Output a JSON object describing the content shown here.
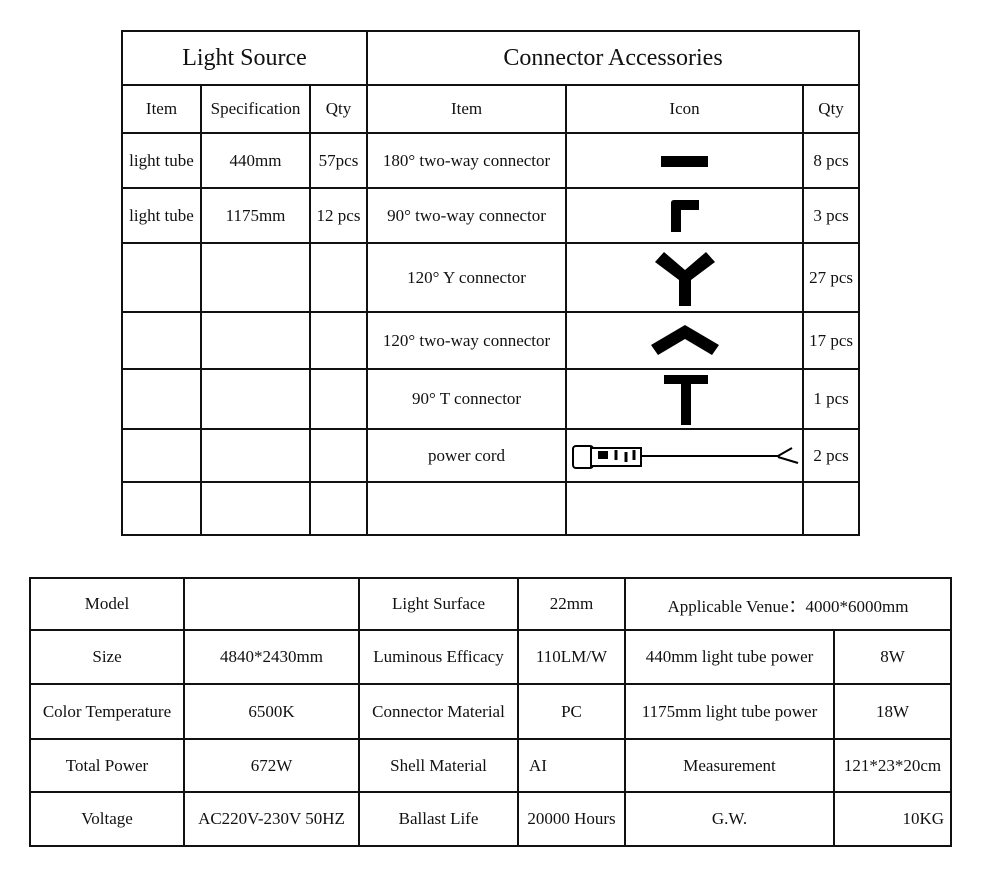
{
  "light_source": {
    "title": "Light Source",
    "headers": [
      "Item",
      "Specification",
      "Qty"
    ],
    "rows": [
      [
        "light tube",
        "440mm",
        "57pcs"
      ],
      [
        "light tube",
        "1175mm",
        "12 pcs"
      ],
      [
        "",
        "",
        ""
      ],
      [
        "",
        "",
        ""
      ],
      [
        "",
        "",
        ""
      ],
      [
        "",
        "",
        ""
      ],
      [
        "",
        "",
        ""
      ]
    ]
  },
  "connector_accessories": {
    "title": "Connector Accessories",
    "headers": [
      "Item",
      "Icon",
      "Qty"
    ],
    "rows": [
      {
        "item": "180° two-way connector",
        "icon": "straight-connector-icon",
        "qty": "8 pcs"
      },
      {
        "item": "90° two-way connector",
        "icon": "elbow-connector-icon",
        "qty": "3 pcs"
      },
      {
        "item": "120° Y connector",
        "icon": "y-connector-icon",
        "qty": "27 pcs"
      },
      {
        "item": "120° two-way connector",
        "icon": "angle-connector-icon",
        "qty": "17 pcs"
      },
      {
        "item": "90° T connector",
        "icon": "t-connector-icon",
        "qty": "1 pcs"
      },
      {
        "item": "power cord",
        "icon": "power-cord-icon",
        "qty": "2 pcs"
      },
      {
        "item": "",
        "icon": "",
        "qty": ""
      }
    ]
  },
  "specs": {
    "rows": [
      [
        "Model",
        "",
        "Light Surface",
        "22mm",
        "Applicable Venue：4000*6000mm"
      ],
      [
        "Size",
        "4840*2430mm",
        "Luminous Efficacy",
        "110LM/W",
        "440mm light tube power",
        "8W"
      ],
      [
        "Color Temperature",
        "6500K",
        "Connector Material",
        "PC",
        "1175mm light tube power",
        "18W"
      ],
      [
        "Total Power",
        "672W",
        "Shell Material",
        "AI",
        "Measurement",
        "121*23*20cm"
      ],
      [
        "Voltage",
        "AC220V-230V 50HZ",
        "Ballast Life",
        "20000 Hours",
        "G.W.",
        "10KG"
      ]
    ]
  }
}
